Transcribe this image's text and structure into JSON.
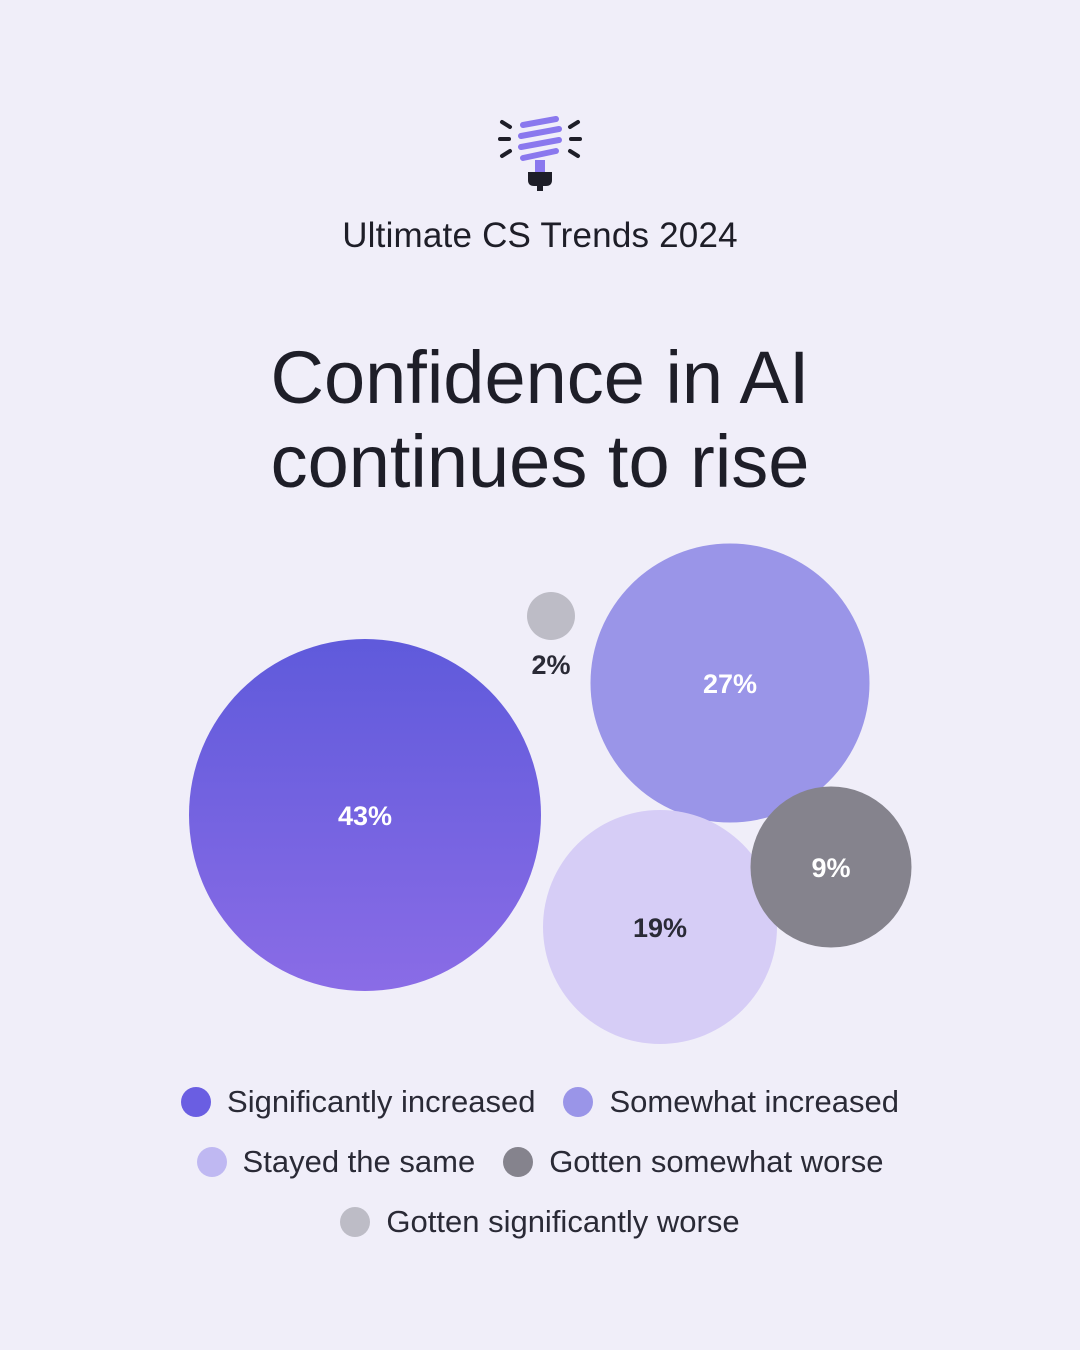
{
  "header": {
    "icon": "lightbulb-icon",
    "subtitle": "Ultimate CS Trends 2024",
    "title_line1": "Confidence in AI",
    "title_line2": "continues to rise"
  },
  "chart_data": {
    "type": "bubble",
    "title": "Confidence in AI continues to rise",
    "unit": "%",
    "series": [
      {
        "name": "Significantly increased",
        "value": 43,
        "label": "43%",
        "color": "#7562e0"
      },
      {
        "name": "Somewhat increased",
        "value": 27,
        "label": "27%",
        "color": "#9a95e8"
      },
      {
        "name": "Stayed the same",
        "value": 19,
        "label": "19%",
        "color": "#d6cdf6"
      },
      {
        "name": "Gotten somewhat worse",
        "value": 9,
        "label": "9%",
        "color": "#85838d"
      },
      {
        "name": "Gotten significantly worse",
        "value": 2,
        "label": "2%",
        "color": "#bdbcc6"
      }
    ],
    "legend_position": "bottom"
  },
  "legend": {
    "rows": [
      [
        0,
        1
      ],
      [
        2,
        3
      ],
      [
        4
      ]
    ]
  }
}
